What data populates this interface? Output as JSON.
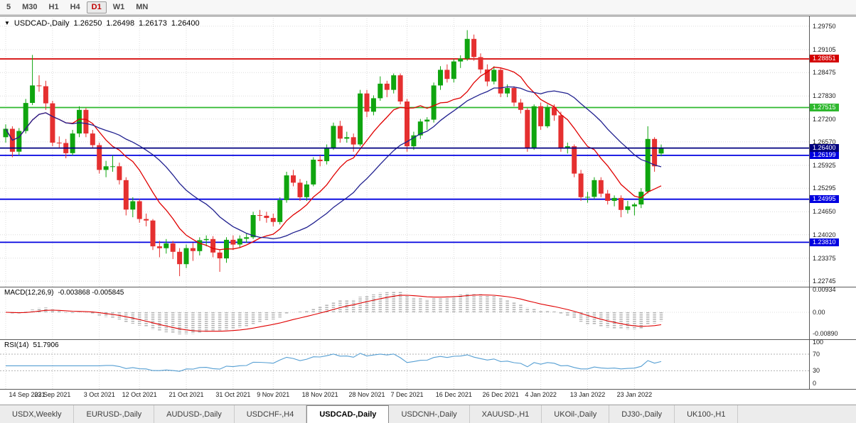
{
  "toolbar": {
    "timeframes": [
      "5",
      "M30",
      "H1",
      "H4",
      "D1",
      "W1",
      "MN"
    ],
    "active": "D1"
  },
  "tabs": {
    "items": [
      "USDX,Weekly",
      "EURUSD-,Daily",
      "AUDUSD-,Daily",
      "USDCHF-,H4",
      "USDCAD-,Daily",
      "USDCNH-,Daily",
      "XAUUSD-,H1",
      "UKOil-,Daily",
      "DJ30-,Daily",
      "UK100-,H1"
    ],
    "active_index": 4
  },
  "chart_data": {
    "type": "candlestick",
    "title_marker": "▼",
    "title_symbol": "USDCAD-,Daily",
    "ohlc_display": {
      "o": "1.26250",
      "h": "1.26498",
      "l": "1.26173",
      "c": "1.26400"
    },
    "price_scale": {
      "max": 1.3004,
      "min": 1.2259,
      "labels": [
        "1.29750",
        "1.29105",
        "1.28475",
        "1.27830",
        "1.27200",
        "1.26570",
        "1.25925",
        "1.25295",
        "1.24650",
        "1.24020",
        "1.23375",
        "1.22745"
      ]
    },
    "x_axis": {
      "tick_labels": [
        "14 Sep 2021",
        "23 Sep 2021",
        "3 Oct 2021",
        "12 Oct 2021",
        "21 Oct 2021",
        "31 Oct 2021",
        "9 Nov 2021",
        "18 Nov 2021",
        "28 Nov 2021",
        "7 Dec 2021",
        "16 Dec 2021",
        "26 Dec 2021",
        "4 Jan 2022",
        "13 Jan 2022",
        "23 Jan 2022"
      ],
      "tick_indices": [
        0,
        7,
        14,
        20,
        27,
        34,
        40,
        47,
        54,
        60,
        67,
        74,
        80,
        87,
        94
      ]
    },
    "hlines": [
      {
        "price": 1.28851,
        "label": "1.28851",
        "color": "#d40000"
      },
      {
        "price": 1.27515,
        "label": "1.27515",
        "color": "#2eb82e"
      },
      {
        "price": 1.26199,
        "label": "1.26199",
        "color": "#0000e0"
      },
      {
        "price": 1.24995,
        "label": "1.24995",
        "color": "#0000e0"
      },
      {
        "price": 1.2381,
        "label": "1.23810",
        "color": "#0000e0"
      }
    ],
    "current_price": {
      "price": 1.264,
      "label": "1.26400",
      "color": "#000080"
    },
    "moving_averages": [
      {
        "type": "sma",
        "period": 10,
        "color": "#e00000"
      },
      {
        "type": "sma",
        "period": 21,
        "color": "#20208f"
      }
    ],
    "indicators": {
      "macd": {
        "name_label": "MACD(12,26,9)",
        "values_label": "-0.003868 -0.005845",
        "axis_labels": [
          "0.00934",
          "0.00",
          "-0.00890"
        ],
        "axis_values": [
          0.00934,
          0,
          -0.0089
        ],
        "histogram_color": "#b2b2b2",
        "signal_color": "#e00000"
      },
      "rsi": {
        "name_label": "RSI(14)",
        "values_label": "51.7906",
        "axis_labels": [
          "100",
          "70",
          "30",
          "0"
        ],
        "axis_values": [
          100,
          70,
          30,
          0
        ],
        "levels": [
          70,
          30
        ],
        "line_color": "#569fd3"
      }
    },
    "colors": {
      "up": "#0fa50f",
      "down": "#e53030",
      "grid": "#dcdcdc",
      "silver": "#b2b2b2"
    },
    "candles": [
      [
        1.267,
        1.2705,
        1.2655,
        1.2693
      ],
      [
        1.2693,
        1.27,
        1.2615,
        1.263
      ],
      [
        1.263,
        1.2695,
        1.262,
        1.2687
      ],
      [
        1.2687,
        1.2775,
        1.268,
        1.2764
      ],
      [
        1.2764,
        1.2896,
        1.2758,
        1.2812
      ],
      [
        1.2812,
        1.284,
        1.2795,
        1.281
      ],
      [
        1.281,
        1.2825,
        1.2745,
        1.2763
      ],
      [
        1.2763,
        1.277,
        1.2645,
        1.2655
      ],
      [
        1.2655,
        1.2672,
        1.264,
        1.2654
      ],
      [
        1.2654,
        1.2665,
        1.2612,
        1.2626
      ],
      [
        1.2626,
        1.269,
        1.262,
        1.268
      ],
      [
        1.268,
        1.2755,
        1.267,
        1.2745
      ],
      [
        1.2745,
        1.275,
        1.267,
        1.268
      ],
      [
        1.268,
        1.269,
        1.264,
        1.2648
      ],
      [
        1.2648,
        1.2655,
        1.257,
        1.258
      ],
      [
        1.258,
        1.2605,
        1.256,
        1.259
      ],
      [
        1.259,
        1.262,
        1.2575,
        1.259
      ],
      [
        1.259,
        1.26,
        1.254,
        1.2552
      ],
      [
        1.2552,
        1.256,
        1.2455,
        1.2471
      ],
      [
        1.2471,
        1.2505,
        1.245,
        1.2494
      ],
      [
        1.2494,
        1.25,
        1.2435,
        1.2445
      ],
      [
        1.2445,
        1.246,
        1.2425,
        1.2441
      ],
      [
        1.2441,
        1.2445,
        1.236,
        1.237
      ],
      [
        1.237,
        1.2385,
        1.234,
        1.2365
      ],
      [
        1.2365,
        1.239,
        1.235,
        1.2378
      ],
      [
        1.2378,
        1.2385,
        1.2335,
        1.2355
      ],
      [
        1.2355,
        1.2365,
        1.2288,
        1.2321
      ],
      [
        1.2321,
        1.2375,
        1.231,
        1.2365
      ],
      [
        1.2365,
        1.238,
        1.233,
        1.2357
      ],
      [
        1.2357,
        1.2395,
        1.2345,
        1.2387
      ],
      [
        1.2387,
        1.24,
        1.237,
        1.239
      ],
      [
        1.239,
        1.2398,
        1.234,
        1.2353
      ],
      [
        1.2353,
        1.236,
        1.23,
        1.2337
      ],
      [
        1.2337,
        1.2395,
        1.2325,
        1.2388
      ],
      [
        1.2388,
        1.24,
        1.236,
        1.2375
      ],
      [
        1.2375,
        1.24,
        1.2365,
        1.2391
      ],
      [
        1.2391,
        1.2405,
        1.238,
        1.2395
      ],
      [
        1.2395,
        1.2465,
        1.239,
        1.2456
      ],
      [
        1.2456,
        1.247,
        1.244,
        1.2454
      ],
      [
        1.2454,
        1.2465,
        1.2435,
        1.2448
      ],
      [
        1.2448,
        1.246,
        1.2425,
        1.2437
      ],
      [
        1.2437,
        1.2505,
        1.243,
        1.2497
      ],
      [
        1.2497,
        1.2575,
        1.249,
        1.2565
      ],
      [
        1.2565,
        1.258,
        1.2535,
        1.2545
      ],
      [
        1.2545,
        1.2555,
        1.2495,
        1.2505
      ],
      [
        1.2505,
        1.255,
        1.2495,
        1.254
      ],
      [
        1.254,
        1.2615,
        1.2535,
        1.2608
      ],
      [
        1.2608,
        1.262,
        1.259,
        1.2604
      ],
      [
        1.2604,
        1.265,
        1.2595,
        1.2641
      ],
      [
        1.2641,
        1.271,
        1.2635,
        1.2701
      ],
      [
        1.2701,
        1.2715,
        1.2655,
        1.2666
      ],
      [
        1.2666,
        1.2685,
        1.2655,
        1.267
      ],
      [
        1.267,
        1.268,
        1.263,
        1.265
      ],
      [
        1.265,
        1.28,
        1.2645,
        1.279
      ],
      [
        1.279,
        1.28,
        1.2725,
        1.274
      ],
      [
        1.274,
        1.2785,
        1.273,
        1.2777
      ],
      [
        1.2777,
        1.2837,
        1.277,
        1.2817
      ],
      [
        1.2817,
        1.2825,
        1.278,
        1.28
      ],
      [
        1.28,
        1.2845,
        1.279,
        1.284
      ],
      [
        1.284,
        1.2845,
        1.276,
        1.2768
      ],
      [
        1.2768,
        1.2775,
        1.263,
        1.2645
      ],
      [
        1.2645,
        1.2685,
        1.2635,
        1.2675
      ],
      [
        1.2675,
        1.272,
        1.2665,
        1.2713
      ],
      [
        1.2713,
        1.2725,
        1.269,
        1.2718
      ],
      [
        1.2718,
        1.282,
        1.271,
        1.2812
      ],
      [
        1.2812,
        1.2865,
        1.28,
        1.2855
      ],
      [
        1.2855,
        1.287,
        1.282,
        1.283
      ],
      [
        1.283,
        1.2885,
        1.282,
        1.2878
      ],
      [
        1.2878,
        1.2895,
        1.286,
        1.2886
      ],
      [
        1.2886,
        1.2964,
        1.288,
        1.294
      ],
      [
        1.294,
        1.2952,
        1.288,
        1.289
      ],
      [
        1.289,
        1.29,
        1.2845,
        1.2856
      ],
      [
        1.2856,
        1.287,
        1.281,
        1.2823
      ],
      [
        1.2823,
        1.2865,
        1.2815,
        1.2855
      ],
      [
        1.2855,
        1.286,
        1.278,
        1.279
      ],
      [
        1.279,
        1.2815,
        1.278,
        1.2805
      ],
      [
        1.2805,
        1.281,
        1.2755,
        1.2765
      ],
      [
        1.2765,
        1.2775,
        1.2735,
        1.2745
      ],
      [
        1.2745,
        1.275,
        1.263,
        1.264
      ],
      [
        1.264,
        1.276,
        1.2635,
        1.2755
      ],
      [
        1.2755,
        1.2765,
        1.269,
        1.27
      ],
      [
        1.27,
        1.276,
        1.2695,
        1.2753
      ],
      [
        1.2753,
        1.276,
        1.2715,
        1.273
      ],
      [
        1.273,
        1.274,
        1.263,
        1.264
      ],
      [
        1.264,
        1.2655,
        1.2625,
        1.2645
      ],
      [
        1.2645,
        1.265,
        1.256,
        1.257
      ],
      [
        1.257,
        1.258,
        1.2495,
        1.2505
      ],
      [
        1.2505,
        1.252,
        1.249,
        1.2506
      ],
      [
        1.2506,
        1.256,
        1.25,
        1.2552
      ],
      [
        1.2552,
        1.256,
        1.2505,
        1.2515
      ],
      [
        1.2515,
        1.2525,
        1.2485,
        1.2495
      ],
      [
        1.2495,
        1.251,
        1.248,
        1.2503
      ],
      [
        1.2503,
        1.251,
        1.245,
        1.247
      ],
      [
        1.247,
        1.2495,
        1.246,
        1.248
      ],
      [
        1.248,
        1.249,
        1.2455,
        1.2485
      ],
      [
        1.2485,
        1.253,
        1.2475,
        1.252
      ],
      [
        1.252,
        1.27,
        1.2515,
        1.2665
      ],
      [
        1.2665,
        1.267,
        1.2575,
        1.259
      ],
      [
        1.2625,
        1.26498,
        1.26173,
        1.264
      ]
    ]
  }
}
